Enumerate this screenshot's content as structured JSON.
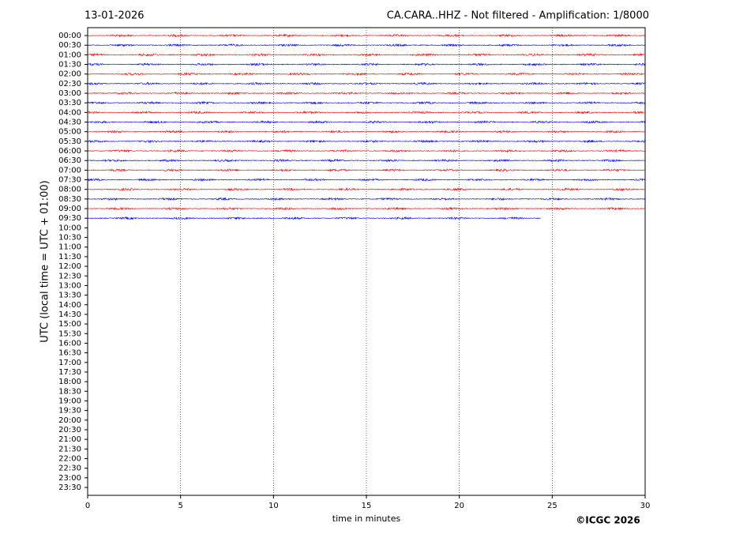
{
  "chart_data": {
    "type": "helicorder",
    "date": "13-01-2026",
    "title": "CA.CARA..HHZ - Not filtered - Amplification: 1/8000",
    "ylabel": "UTC (local time = UTC + 01:00)",
    "xlabel": "time in minutes",
    "copyright": "©ICGC 2026",
    "categories": [
      "00:00",
      "00:30",
      "01:00",
      "01:30",
      "02:00",
      "02:30",
      "03:00",
      "03:30",
      "04:00",
      "04:30",
      "05:00",
      "05:30",
      "06:00",
      "06:30",
      "07:00",
      "07:30",
      "08:00",
      "08:30",
      "09:00",
      "09:30",
      "10:00",
      "10:30",
      "11:00",
      "11:30",
      "12:00",
      "12:30",
      "13:00",
      "13:30",
      "14:00",
      "14:30",
      "15:00",
      "15:30",
      "16:00",
      "16:30",
      "17:00",
      "17:30",
      "18:00",
      "18:30",
      "19:00",
      "19:30",
      "20:00",
      "20:30",
      "21:00",
      "21:30",
      "22:00",
      "22:30",
      "23:00",
      "23:30"
    ],
    "values": [
      30,
      30,
      30,
      30,
      30,
      30,
      30,
      30,
      30,
      30,
      30,
      30,
      30,
      30,
      30,
      30,
      30,
      30,
      30,
      24.4,
      null,
      null,
      null,
      null,
      null,
      null,
      null,
      null,
      null,
      null,
      null,
      null,
      null,
      null,
      null,
      null,
      null,
      null,
      null,
      null,
      null,
      null,
      null,
      null,
      null,
      null,
      null,
      null
    ],
    "colors": [
      "#ff0000",
      "#0000ff"
    ],
    "xlim": [
      0,
      30
    ],
    "xticks": [
      0,
      5,
      10,
      15,
      20,
      25,
      30
    ],
    "grid": true
  }
}
